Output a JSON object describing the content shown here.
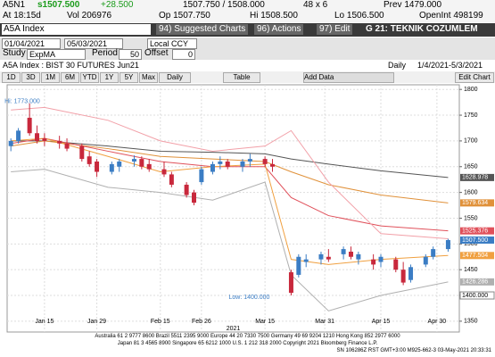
{
  "ui": {
    "quote": {
      "ticker": "A5N1",
      "last": "s1507.500",
      "change": "+28.500",
      "bid_ask": "1507.750 / 1508.000",
      "size": "48 x 6",
      "prev": "Prev 1479.000",
      "time": "At 18:15d",
      "vol": "Vol 206976",
      "open": "Op 1507.750",
      "high": "Hi 1508.500",
      "low": "Lo 1506.500",
      "open_int": "OpenInt 498199"
    },
    "menu": {
      "security": "A5A Index",
      "suggested": "94) Suggested Charts",
      "actions": "96) Actions",
      "edit": "97) Edit",
      "page": "G 21: TEKNIK COZUMLEM"
    },
    "range": {
      "start": "01/04/2021",
      "end": "05/03/2021",
      "currency": "Local CCY"
    },
    "study": {
      "label": "Study",
      "name": "ExpMA",
      "period_label": "Period",
      "period": "50",
      "offset_label": "Offset",
      "offset": "0"
    },
    "info": {
      "security": "A5A Index : BIST 30 FUTURES  Jun21",
      "frequency": "Daily",
      "dates": "1/4/2021-5/3/2021"
    },
    "buttons": [
      "1D",
      "3D",
      "1M",
      "6M",
      "YTD",
      "1Y",
      "5Y",
      "Max",
      "Daily"
    ],
    "table": "Table",
    "add_data": "Add Data",
    "edit_chart": "Edit Chart",
    "footer": [
      "Australia 61 2 9777 8600 Brazil 5511 2395 9000 Europe 44 20 7330 7500 Germany 49 69 9204 1210 Hong Kong 852 2977 6000",
      "Japan 81 3 4565 8900        Singapore 65 6212 1000        U.S. 1 212 318 2000        Copyright 2021 Bloomberg Finance L.P.",
      "SN 106286Z RST  GMT+3:00 M925-662-3 03-May-2021 20:33:31"
    ]
  },
  "chart_data": {
    "type": "candlestick",
    "up_color": "#3b7dc4",
    "down_color": "#c8283c",
    "x": [
      "2021-01-06",
      "2021-01-08",
      "2021-01-11",
      "2021-01-13",
      "2021-01-15",
      "2021-01-19",
      "2021-01-21",
      "2021-01-25",
      "2021-01-27",
      "2021-01-29",
      "2021-02-02",
      "2021-02-04",
      "2021-02-08",
      "2021-02-10",
      "2021-02-12",
      "2021-02-16",
      "2021-02-18",
      "2021-02-22",
      "2021-02-24",
      "2021-02-26",
      "2021-03-01",
      "2021-03-03",
      "2021-03-05",
      "2021-03-09",
      "2021-03-11",
      "2021-03-15",
      "2021-03-17",
      "2021-03-22",
      "2021-03-24",
      "2021-03-26",
      "2021-03-30",
      "2021-04-01",
      "2021-04-05",
      "2021-04-07",
      "2021-04-09",
      "2021-04-13",
      "2021-04-15",
      "2021-04-19",
      "2021-04-21",
      "2021-04-23",
      "2021-04-27",
      "2021-04-29",
      "2021-05-03"
    ],
    "open": [
      1690,
      1700,
      1745,
      1715,
      1705,
      1700,
      1695,
      1690,
      1670,
      1660,
      1640,
      1650,
      1660,
      1665,
      1655,
      1645,
      1635,
      1615,
      1600,
      1620,
      1640,
      1655,
      1660,
      1650,
      1660,
      1665,
      1655,
      1445,
      1440,
      1465,
      1470,
      1475,
      1480,
      1485,
      1470,
      1470,
      1465,
      1470,
      1450,
      1430,
      1460,
      1475,
      1490
    ],
    "high": [
      1705,
      1725,
      1773,
      1730,
      1715,
      1710,
      1705,
      1695,
      1680,
      1665,
      1660,
      1665,
      1672,
      1670,
      1665,
      1660,
      1640,
      1620,
      1605,
      1650,
      1660,
      1670,
      1665,
      1665,
      1675,
      1670,
      1665,
      1450,
      1480,
      1480,
      1485,
      1490,
      1495,
      1495,
      1485,
      1480,
      1480,
      1475,
      1465,
      1460,
      1480,
      1495,
      1510
    ],
    "low": [
      1680,
      1695,
      1710,
      1695,
      1690,
      1685,
      1680,
      1660,
      1650,
      1630,
      1635,
      1640,
      1650,
      1645,
      1640,
      1630,
      1610,
      1590,
      1575,
      1615,
      1635,
      1645,
      1645,
      1640,
      1650,
      1650,
      1640,
      1400,
      1435,
      1455,
      1460,
      1465,
      1470,
      1470,
      1460,
      1450,
      1455,
      1445,
      1420,
      1425,
      1455,
      1470,
      1485
    ],
    "close": [
      1700,
      1720,
      1715,
      1700,
      1700,
      1695,
      1685,
      1665,
      1655,
      1640,
      1655,
      1660,
      1665,
      1650,
      1645,
      1635,
      1615,
      1595,
      1580,
      1645,
      1655,
      1660,
      1650,
      1660,
      1665,
      1655,
      1650,
      1405,
      1475,
      1470,
      1480,
      1470,
      1490,
      1475,
      1480,
      1460,
      1475,
      1450,
      1425,
      1455,
      1475,
      1490,
      1507.5
    ],
    "last_label": "1507.500",
    "low_axis_label": "1400.000",
    "overlays": [
      {
        "color": "#555555",
        "x": [
          "2021-01-06",
          "2021-01-15",
          "2021-02-01",
          "2021-02-15",
          "2021-03-01",
          "2021-03-15",
          "2021-03-22",
          "2021-04-01",
          "2021-04-15",
          "2021-05-03"
        ],
        "values": [
          1700,
          1700,
          1690,
          1680,
          1678,
          1675,
          1665,
          1655,
          1642,
          1628.978
        ],
        "end_label": "1628.978"
      },
      {
        "color": "#e0913a",
        "x": [
          "2021-01-06",
          "2021-01-15",
          "2021-02-01",
          "2021-02-15",
          "2021-03-01",
          "2021-03-15",
          "2021-03-22",
          "2021-04-01",
          "2021-04-15",
          "2021-05-03"
        ],
        "values": [
          1690,
          1700,
          1685,
          1670,
          1665,
          1660,
          1640,
          1615,
          1595,
          1579.634
        ],
        "end_label": "1579.634"
      },
      {
        "color": "#e0505a",
        "x": [
          "2021-01-06",
          "2021-01-15",
          "2021-02-01",
          "2021-02-15",
          "2021-03-01",
          "2021-03-15",
          "2021-03-22",
          "2021-04-01",
          "2021-04-15",
          "2021-05-03"
        ],
        "values": [
          1695,
          1705,
          1680,
          1660,
          1650,
          1650,
          1590,
          1555,
          1535,
          1525.376
        ],
        "end_label": "1525.376"
      },
      {
        "color": "#f2a0a8",
        "x": [
          "2021-01-06",
          "2021-01-15",
          "2021-02-01",
          "2021-02-15",
          "2021-03-01",
          "2021-03-15",
          "2021-03-22",
          "2021-04-01",
          "2021-04-15",
          "2021-05-03"
        ],
        "values": [
          1760,
          1765,
          1740,
          1700,
          1680,
          1690,
          1720,
          1620,
          1520,
          1510
        ]
      },
      {
        "color": "#b0b0b0",
        "x": [
          "2021-01-06",
          "2021-01-15",
          "2021-02-01",
          "2021-02-15",
          "2021-03-01",
          "2021-03-15",
          "2021-03-22",
          "2021-04-01",
          "2021-04-15",
          "2021-05-03"
        ],
        "values": [
          1640,
          1645,
          1610,
          1600,
          1585,
          1620,
          1440,
          1370,
          1400,
          1426.286
        ],
        "end_label": "1426.286"
      },
      {
        "color": "#f0a040",
        "x": [
          "2021-01-06",
          "2021-01-15",
          "2021-02-01",
          "2021-02-15",
          "2021-03-01",
          "2021-03-15",
          "2021-03-22",
          "2021-04-01",
          "2021-04-15",
          "2021-05-03"
        ],
        "values": [
          1700,
          1705,
          1670,
          1640,
          1650,
          1655,
          1470,
          1460,
          1470,
          1477.504
        ],
        "end_label": "1477.504"
      }
    ],
    "annotations": [
      {
        "text": "Hi: 1773.000",
        "x": "2021-01-11",
        "y": 1773
      },
      {
        "text": "Low: 1400.000",
        "x": "2021-03-22",
        "y": 1400
      }
    ],
    "xlim": [
      "2021-01-05",
      "2021-05-06"
    ],
    "xticks": [
      {
        "value": "2021-01-15",
        "label": "Jan 15"
      },
      {
        "value": "2021-01-29",
        "label": "Jan 29"
      },
      {
        "value": "2021-02-15",
        "label": "Feb 15"
      },
      {
        "value": "2021-02-26",
        "label": "Feb 26"
      },
      {
        "value": "2021-03-15",
        "label": "Mar 15"
      },
      {
        "value": "2021-03-31",
        "label": "Mar 31"
      },
      {
        "value": "2021-04-15",
        "label": "Apr 15"
      },
      {
        "value": "2021-04-30",
        "label": "Apr 30"
      }
    ],
    "year_label": "2021",
    "ylim": [
      1329,
      1809
    ],
    "yticks": [
      1350,
      1400,
      1450,
      1500,
      1550,
      1600,
      1650,
      1700,
      1750,
      1800
    ],
    "grid": true
  }
}
